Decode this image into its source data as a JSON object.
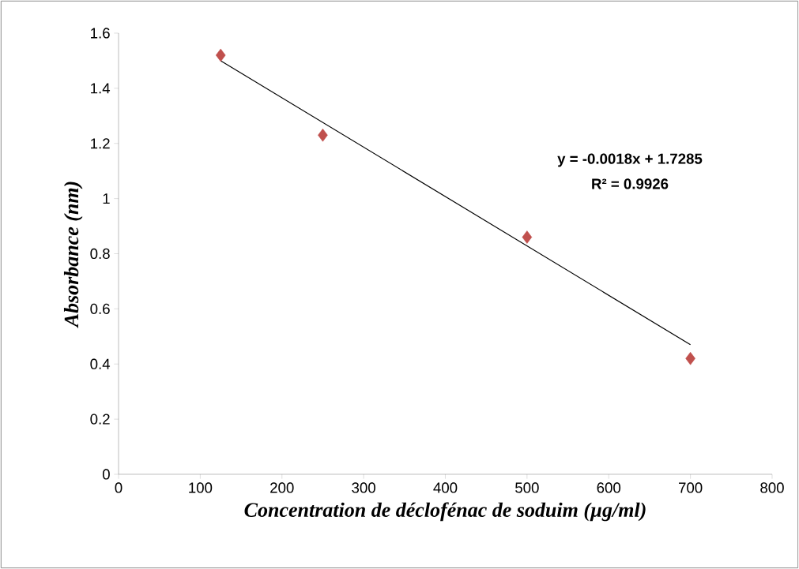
{
  "chart_data": {
    "type": "scatter",
    "xlabel": "Concentration de déclofénac de soduim (µg/ml)",
    "ylabel": "Absorbance (nm)",
    "series": [
      {
        "color": "#c0504d",
        "marker": "diamond",
        "x": [
          125,
          250,
          500,
          700
        ],
        "values": [
          1.52,
          1.23,
          0.86,
          0.42
        ]
      },
      {
        "type": "line",
        "color": "#000000",
        "marker": "none",
        "x": [
          125,
          700
        ],
        "values": [
          1.5,
          0.47
        ]
      }
    ],
    "annotations": [
      "y = -0.0018x + 1.7285",
      "R² = 0.9926"
    ],
    "xlim": [
      0,
      800
    ],
    "xticks": [
      0,
      100,
      200,
      300,
      400,
      500,
      600,
      700,
      800
    ],
    "ylim": [
      0,
      1.6
    ],
    "yticks": [
      0,
      0.2,
      0.4,
      0.6,
      0.8,
      1,
      1.2,
      1.4,
      1.6
    ]
  }
}
